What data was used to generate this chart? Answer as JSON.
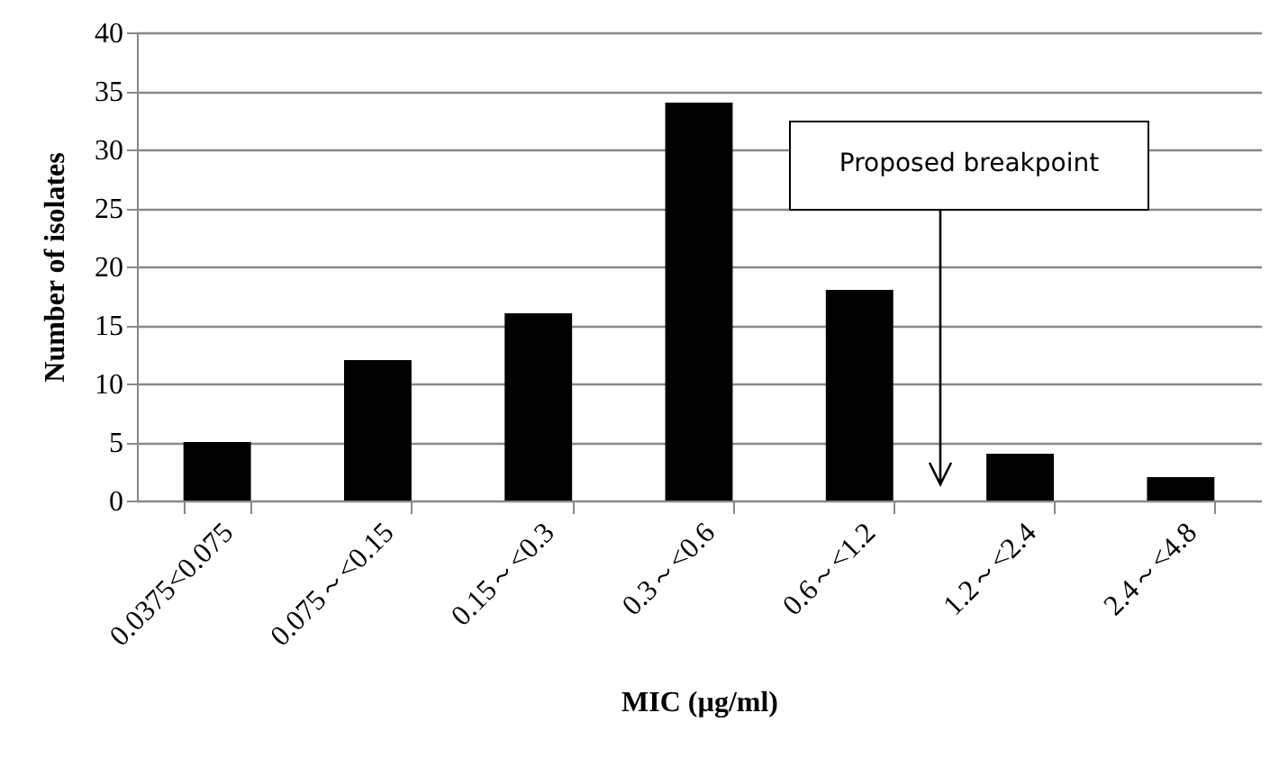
{
  "chart_data": {
    "type": "bar",
    "xlabel": "MIC (µg/ml)",
    "ylabel": "Number of isolates",
    "categories": [
      "0.0375<0.075",
      "0.075～<0.15",
      "0.15～<0.3",
      "0.3～<0.6",
      "0.6～<1.2",
      "1.2～<2.4",
      "2.4～<4.8"
    ],
    "values": [
      5,
      12,
      16,
      34,
      18,
      4,
      2
    ],
    "color": "#000000",
    "ylim": [
      0,
      40
    ],
    "yticks": [
      0,
      5,
      10,
      15,
      20,
      25,
      30,
      35,
      40
    ],
    "grid": "y",
    "annotations": [
      "Proposed breakpoint"
    ]
  }
}
